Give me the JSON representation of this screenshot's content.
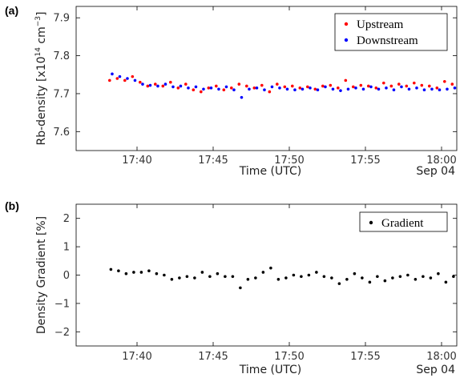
{
  "chart_data": [
    {
      "type": "scatter",
      "panel_label": "(a)",
      "ylabel": "Rb-density  [x10",
      "ylabel_exp": "14",
      "ylabel_unit": " cm",
      "ylabel_unit_exp": "−3",
      "ylabel_close": "]",
      "xlabel": "Time (UTC)",
      "date_label": "Sep 04",
      "xlim": [
        "17:36",
        "18:01"
      ],
      "ylim": [
        7.55,
        7.93
      ],
      "x_ticks": [
        "17:40",
        "17:45",
        "17:50",
        "17:55",
        "18:00"
      ],
      "y_ticks": [
        "7.6",
        "7.7",
        "7.8",
        "7.9"
      ],
      "grid": false,
      "legend_position": "top-right",
      "series": [
        {
          "name": "Upstream",
          "color": "#ff0000",
          "x": [
            "17:38:12",
            "17:38:42",
            "17:39:12",
            "17:39:42",
            "17:40:12",
            "17:40:42",
            "17:41:12",
            "17:41:42",
            "17:42:12",
            "17:42:42",
            "17:43:12",
            "17:43:42",
            "17:44:12",
            "17:44:42",
            "17:45:12",
            "17:45:42",
            "17:46:12",
            "17:46:42",
            "17:47:12",
            "17:47:42",
            "17:48:12",
            "17:48:42",
            "17:49:12",
            "17:49:42",
            "17:50:12",
            "17:50:42",
            "17:51:12",
            "17:51:42",
            "17:52:12",
            "17:52:42",
            "17:53:12",
            "17:53:42",
            "17:54:12",
            "17:54:42",
            "17:55:12",
            "17:55:42",
            "17:56:12",
            "17:56:42",
            "17:57:12",
            "17:57:42",
            "17:58:12",
            "17:58:42",
            "17:59:12",
            "17:59:42",
            "18:00:12",
            "18:00:42"
          ],
          "y": [
            7.735,
            7.74,
            7.735,
            7.745,
            7.73,
            7.72,
            7.725,
            7.72,
            7.73,
            7.715,
            7.725,
            7.71,
            7.705,
            7.715,
            7.72,
            7.71,
            7.715,
            7.725,
            7.72,
            7.715,
            7.722,
            7.705,
            7.725,
            7.718,
            7.72,
            7.715,
            7.718,
            7.712,
            7.72,
            7.722,
            7.715,
            7.735,
            7.718,
            7.722,
            7.72,
            7.715,
            7.728,
            7.72,
            7.725,
            7.72,
            7.728,
            7.722,
            7.72,
            7.715,
            7.732,
            7.725
          ]
        },
        {
          "name": "Downstream",
          "color": "#0000ff",
          "x": [
            "17:38:22",
            "17:38:52",
            "17:39:22",
            "17:39:52",
            "17:40:22",
            "17:40:52",
            "17:41:22",
            "17:41:52",
            "17:42:22",
            "17:42:52",
            "17:43:22",
            "17:43:52",
            "17:44:22",
            "17:44:52",
            "17:45:22",
            "17:45:52",
            "17:46:22",
            "17:46:52",
            "17:47:22",
            "17:47:52",
            "17:48:22",
            "17:48:52",
            "17:49:22",
            "17:49:52",
            "17:50:22",
            "17:50:52",
            "17:51:22",
            "17:51:52",
            "17:52:22",
            "17:52:52",
            "17:53:22",
            "17:53:52",
            "17:54:22",
            "17:54:52",
            "17:55:22",
            "17:55:52",
            "17:56:22",
            "17:56:52",
            "17:57:22",
            "17:57:52",
            "17:58:22",
            "17:58:52",
            "17:59:22",
            "17:59:52",
            "18:00:22",
            "18:00:52"
          ],
          "y": [
            7.752,
            7.745,
            7.74,
            7.735,
            7.725,
            7.722,
            7.72,
            7.725,
            7.718,
            7.72,
            7.715,
            7.718,
            7.712,
            7.715,
            7.712,
            7.718,
            7.71,
            7.69,
            7.712,
            7.715,
            7.71,
            7.718,
            7.715,
            7.712,
            7.71,
            7.712,
            7.715,
            7.71,
            7.718,
            7.712,
            7.708,
            7.712,
            7.715,
            7.712,
            7.718,
            7.712,
            7.715,
            7.71,
            7.718,
            7.712,
            7.715,
            7.71,
            7.712,
            7.71,
            7.712,
            7.715
          ]
        }
      ]
    },
    {
      "type": "scatter",
      "panel_label": "(b)",
      "ylabel": "Density Gradient  [%]",
      "xlabel": "Time (UTC)",
      "date_label": "Sep 04",
      "xlim": [
        "17:36",
        "18:01"
      ],
      "ylim": [
        -2.5,
        2.5
      ],
      "x_ticks": [
        "17:40",
        "17:45",
        "17:50",
        "17:55",
        "18:00"
      ],
      "y_ticks": [
        "−2",
        "−1",
        "0",
        "1",
        "2"
      ],
      "grid": false,
      "legend_position": "top-right",
      "series": [
        {
          "name": "Gradient",
          "color": "#000000",
          "x": [
            "17:38:17",
            "17:38:47",
            "17:39:17",
            "17:39:47",
            "17:40:17",
            "17:40:47",
            "17:41:17",
            "17:41:47",
            "17:42:17",
            "17:42:47",
            "17:43:17",
            "17:43:47",
            "17:44:17",
            "17:44:47",
            "17:45:17",
            "17:45:47",
            "17:46:17",
            "17:46:47",
            "17:47:17",
            "17:47:47",
            "17:48:17",
            "17:48:47",
            "17:49:17",
            "17:49:47",
            "17:50:17",
            "17:50:47",
            "17:51:17",
            "17:51:47",
            "17:52:17",
            "17:52:47",
            "17:53:17",
            "17:53:47",
            "17:54:17",
            "17:54:47",
            "17:55:17",
            "17:55:47",
            "17:56:17",
            "17:56:47",
            "17:57:17",
            "17:57:47",
            "17:58:17",
            "17:58:47",
            "17:59:17",
            "17:59:47",
            "18:00:17",
            "18:00:47"
          ],
          "y": [
            0.2,
            0.15,
            0.05,
            0.1,
            0.1,
            0.15,
            0.05,
            0.0,
            -0.15,
            -0.1,
            -0.05,
            -0.1,
            0.1,
            -0.05,
            0.05,
            -0.05,
            -0.05,
            -0.45,
            -0.15,
            -0.1,
            0.1,
            0.25,
            -0.15,
            -0.1,
            0.0,
            -0.05,
            0.0,
            0.1,
            -0.05,
            -0.1,
            -0.3,
            -0.15,
            0.05,
            -0.1,
            -0.25,
            -0.05,
            -0.2,
            -0.1,
            -0.05,
            0.0,
            -0.15,
            -0.05,
            -0.1,
            0.05,
            -0.25,
            -0.05
          ]
        }
      ]
    }
  ]
}
